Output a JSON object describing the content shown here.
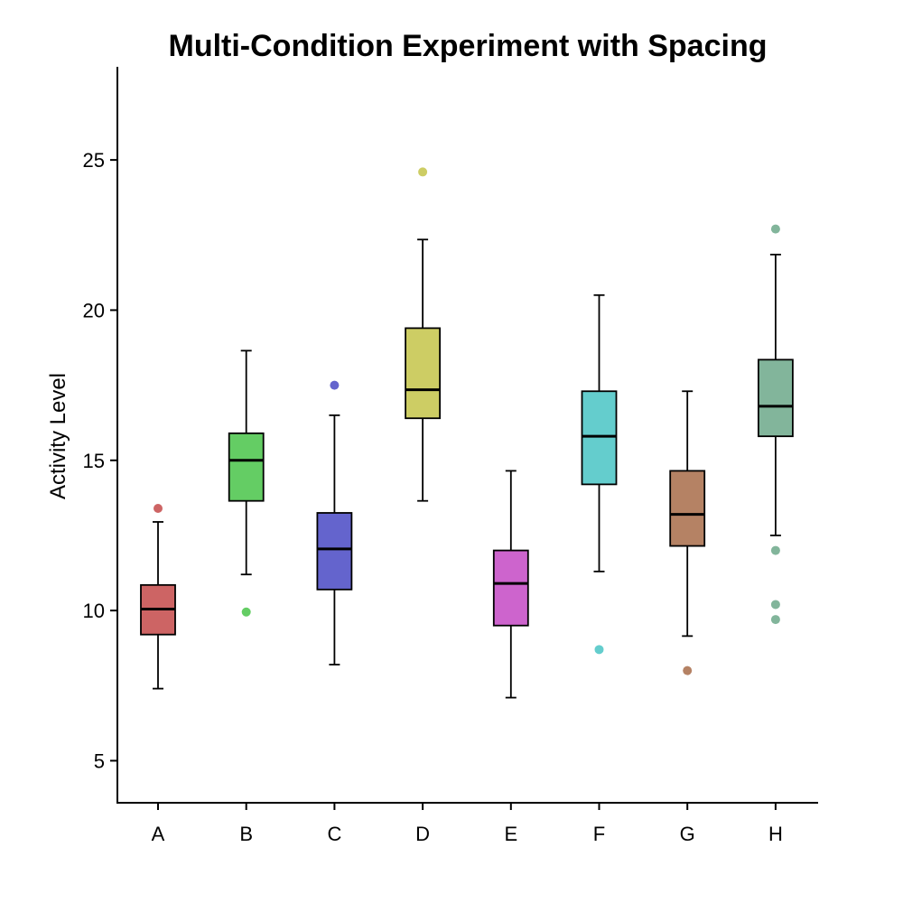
{
  "chart_data": {
    "type": "box",
    "title": "Multi-Condition Experiment with Spacing",
    "xlabel": "",
    "ylabel": "Activity Level",
    "ylim": [
      3.6,
      28.1
    ],
    "yticks": [
      5,
      10,
      15,
      20,
      25
    ],
    "grid": false,
    "categories": [
      "A",
      "B",
      "C",
      "D",
      "E",
      "F",
      "G",
      "H"
    ],
    "boxes": [
      {
        "category": "A",
        "color": "#CD6464",
        "whisker_low": 7.4,
        "q1": 9.2,
        "median": 10.05,
        "q3": 10.85,
        "whisker_high": 12.95,
        "outliers": [
          13.4
        ]
      },
      {
        "category": "B",
        "color": "#64CD64",
        "whisker_low": 11.2,
        "q1": 13.65,
        "median": 15.0,
        "q3": 15.9,
        "whisker_high": 18.65,
        "outliers": [
          9.95
        ]
      },
      {
        "category": "C",
        "color": "#6464CD",
        "whisker_low": 8.2,
        "q1": 10.7,
        "median": 12.05,
        "q3": 13.25,
        "whisker_high": 16.5,
        "outliers": [
          17.5
        ]
      },
      {
        "category": "D",
        "color": "#CDCD64",
        "whisker_low": 13.65,
        "q1": 16.4,
        "median": 17.35,
        "q3": 19.4,
        "whisker_high": 22.35,
        "outliers": [
          24.6
        ]
      },
      {
        "category": "E",
        "color": "#CD64CD",
        "whisker_low": 7.1,
        "q1": 9.5,
        "median": 10.9,
        "q3": 12.0,
        "whisker_high": 14.65,
        "outliers": []
      },
      {
        "category": "F",
        "color": "#64CDCD",
        "whisker_low": 11.3,
        "q1": 14.2,
        "median": 15.8,
        "q3": 17.3,
        "whisker_high": 20.5,
        "outliers": [
          8.7
        ]
      },
      {
        "category": "G",
        "color": "#B58264",
        "whisker_low": 9.15,
        "q1": 12.15,
        "median": 13.2,
        "q3": 14.65,
        "whisker_high": 17.3,
        "outliers": [
          8.0
        ]
      },
      {
        "category": "H",
        "color": "#82B59B",
        "whisker_low": 12.5,
        "q1": 15.8,
        "median": 16.8,
        "q3": 18.35,
        "whisker_high": 21.85,
        "outliers": [
          22.7,
          12.0,
          10.2,
          9.7
        ]
      }
    ]
  }
}
